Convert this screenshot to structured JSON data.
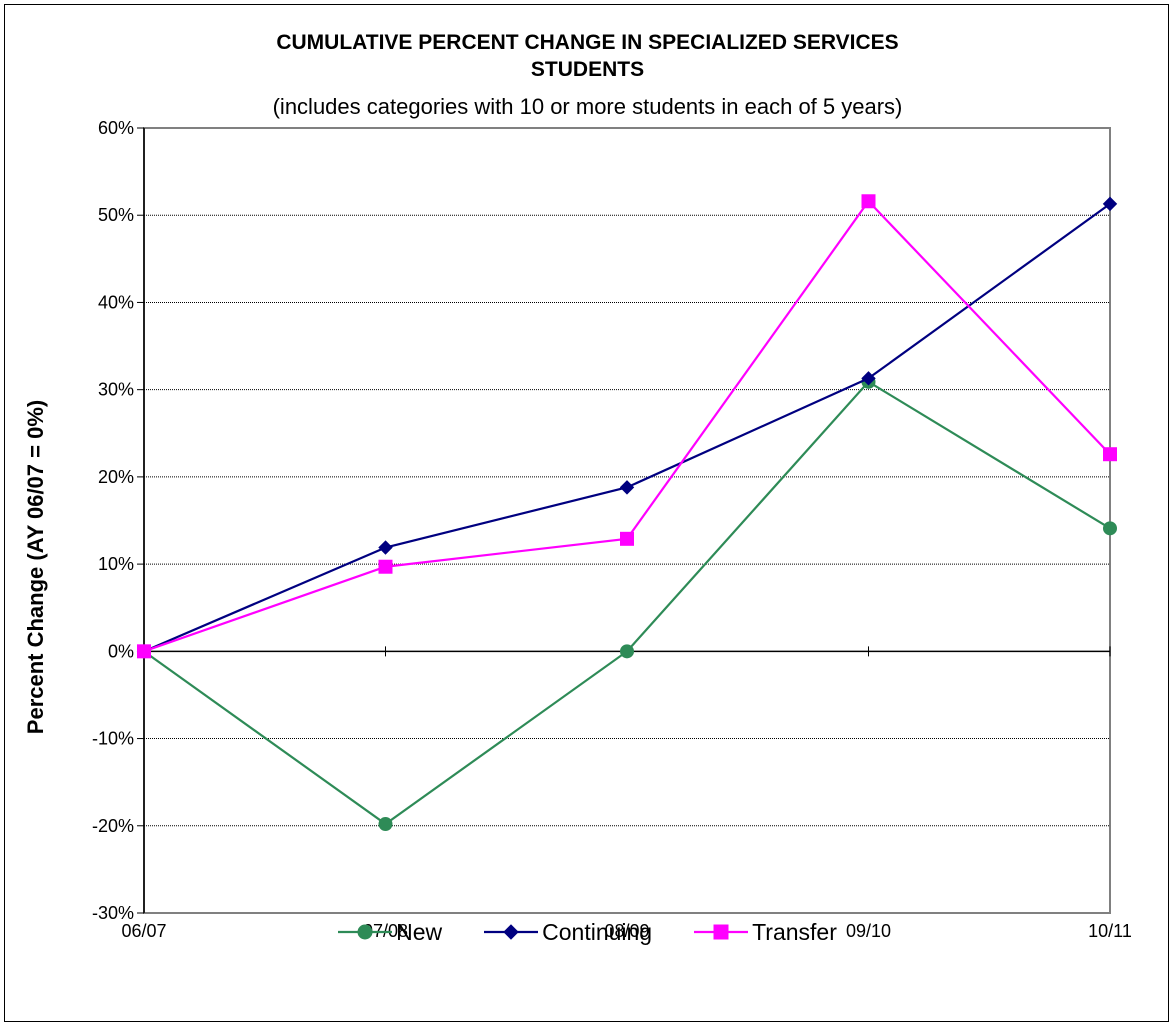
{
  "chart_data": {
    "type": "line",
    "title": "CUMULATIVE PERCENT CHANGE IN SPECIALIZED SERVICES",
    "title_line2": "STUDENTS",
    "subtitle": "(includes categories with 10 or more students in each of 5 years)",
    "ylabel": "Percent Change (AY 06/07 = 0%)",
    "xlabel": "",
    "categories": [
      "06/07",
      "07/08",
      "08/09",
      "09/10",
      "10/11"
    ],
    "ylim": [
      -30,
      60
    ],
    "yticks": [
      60,
      50,
      40,
      30,
      20,
      10,
      0,
      -10,
      -20,
      -30
    ],
    "ytick_labels": [
      "60%",
      "50%",
      "40%",
      "30%",
      "20%",
      "10%",
      "0%",
      "-10%",
      "-20%",
      "-30%"
    ],
    "grid": true,
    "legend_position": "bottom",
    "series": [
      {
        "name": "New",
        "values": [
          0,
          -19.8,
          0,
          30.9,
          14.1
        ],
        "color": "#2e8b57",
        "marker": "circle"
      },
      {
        "name": "Continuing",
        "values": [
          0,
          11.9,
          18.8,
          31.3,
          51.3
        ],
        "color": "#000080",
        "marker": "diamond"
      },
      {
        "name": "Transfer",
        "values": [
          0,
          9.7,
          12.9,
          51.6,
          22.6
        ],
        "color": "#ff00ff",
        "marker": "square"
      }
    ]
  }
}
